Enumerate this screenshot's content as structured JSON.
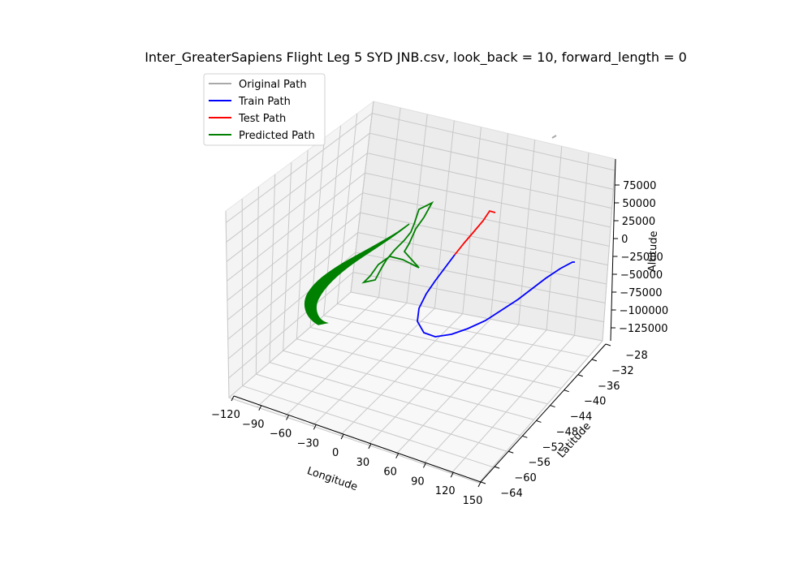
{
  "chart_data": {
    "type": "line3d",
    "title": "Inter_GreaterSapiens Flight Leg 5 SYD JNB.csv, look_back = 10, forward_length = 0",
    "xlabel": "Longitude",
    "ylabel": "Latitude",
    "zlabel": "Altitude",
    "xticks": [
      "−120",
      "−90",
      "−60",
      "−30",
      "0",
      "30",
      "60",
      "90",
      "120",
      "150"
    ],
    "yticks": [
      "−28",
      "−32",
      "−36",
      "−40",
      "−44",
      "−48",
      "−52",
      "−56",
      "−60",
      "−64"
    ],
    "zticks": [
      "75000",
      "50000",
      "25000",
      "0",
      "−25000",
      "−50000",
      "−75000",
      "−100000",
      "−125000"
    ],
    "grid": true,
    "legend": {
      "position": "upper-left",
      "entries": [
        {
          "label": "Original Path",
          "color": "#a9a9a9"
        },
        {
          "label": "Train Path",
          "color": "#0000ff"
        },
        {
          "label": "Test Path",
          "color": "#ff0000"
        },
        {
          "label": "Predicted Path",
          "color": "#008000"
        }
      ]
    },
    "series": [
      {
        "name": "Original Path",
        "color": "#a9a9a9"
      },
      {
        "name": "Train Path",
        "color": "#0000ff"
      },
      {
        "name": "Test Path",
        "color": "#ff0000"
      },
      {
        "name": "Predicted Path",
        "color": "#008000"
      }
    ]
  }
}
